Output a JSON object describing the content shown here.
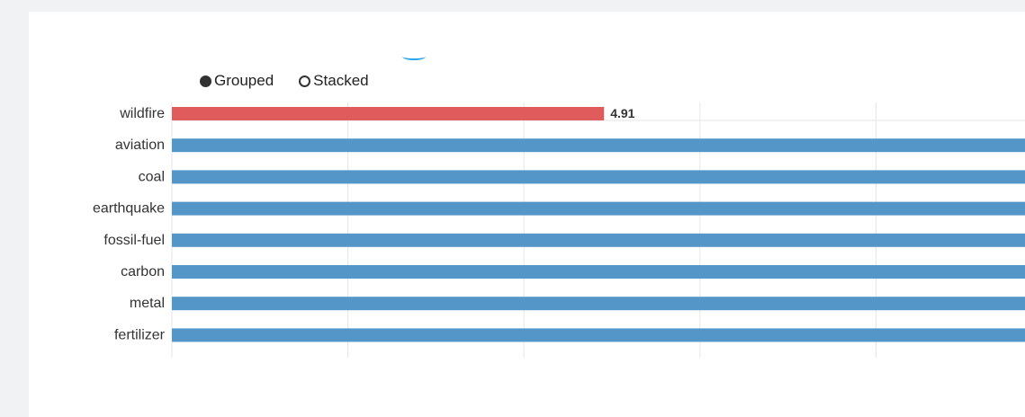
{
  "legend": {
    "options": [
      {
        "label": "Grouped",
        "checked": true
      },
      {
        "label": "Stacked",
        "checked": false
      }
    ]
  },
  "colors": {
    "highlight": "#e05c5c",
    "bar": "#5596c8",
    "grid": "#e6e6e6"
  },
  "chart_data": {
    "type": "bar",
    "orientation": "horizontal",
    "categories": [
      "wildfire",
      "aviation",
      "coal",
      "earthquake",
      "fossil-fuel",
      "carbon",
      "metal",
      "fertilizer"
    ],
    "values": [
      4.91,
      9.9,
      9.9,
      9.9,
      9.9,
      9.9,
      9.9,
      9.9
    ],
    "data_labels": [
      "4.91",
      "",
      "",
      "",
      "",
      "",
      "",
      ""
    ],
    "xlim": [
      0,
      10
    ],
    "grid": true,
    "legend": "top-left"
  }
}
